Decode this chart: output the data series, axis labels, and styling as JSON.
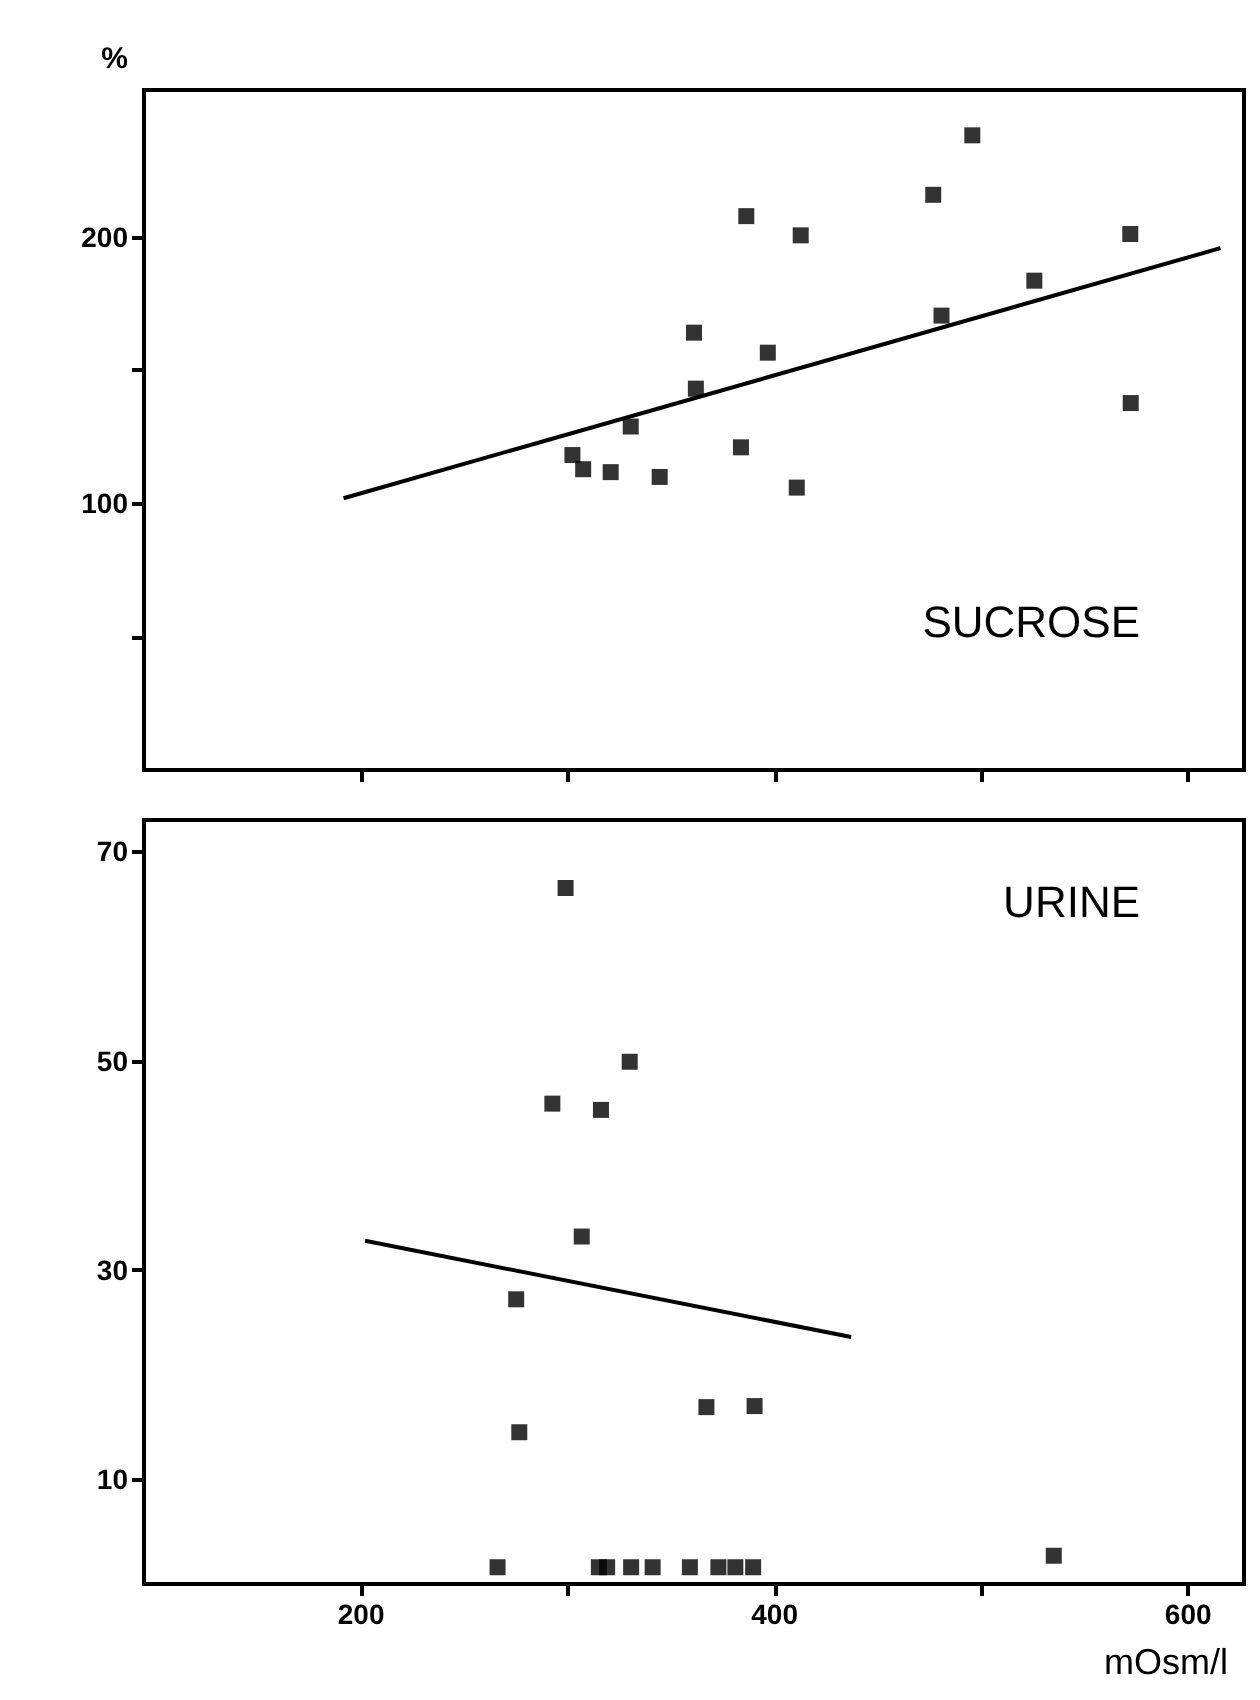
{
  "chart_data": [
    {
      "type": "scatter",
      "title": "SUCROSE",
      "ylabel": "%",
      "marker": "square",
      "tick_labels": "y",
      "grid": false,
      "xlim": [
        95,
        627
      ],
      "xticks": [
        {
          "value": 200,
          "label": null
        },
        {
          "value": 300,
          "label": null
        },
        {
          "value": 400,
          "label": null
        },
        {
          "value": 500,
          "label": null
        },
        {
          "value": 600,
          "label": null
        }
      ],
      "ylim": [
        0,
        255
      ],
      "yticks": [
        {
          "value": 50,
          "label": null
        },
        100,
        {
          "value": 150,
          "label": null
        },
        200
      ],
      "series": [
        {
          "color": "#000000",
          "x": [
            495.6,
            476.7,
            386.3,
            412.6,
            572,
            525.6,
            480.7,
            361,
            396.7,
            361.9,
            330.4,
            302.2,
            307.4,
            320.7,
            344.4,
            383.7,
            410.7,
            572.2
          ],
          "values": [
            238,
            215.7,
            207.7,
            200.5,
            201,
            183.5,
            170.4,
            164,
            156.5,
            143,
            128.8,
            118.1,
            112.8,
            111.7,
            109.9,
            121,
            105.9,
            137.6
          ]
        },
        {
          "type": "line",
          "color": "#000000",
          "marker": "none",
          "x": [
            191.5,
            615.6
          ],
          "values": [
            101.9,
            195.7
          ]
        }
      ]
    },
    {
      "type": "scatter",
      "title": "URINE",
      "xlabel": "mOsm/l",
      "marker": "square",
      "grid": false,
      "xlim": [
        95,
        627
      ],
      "xticks": [
        200,
        {
          "value": 300,
          "label": null
        },
        400,
        {
          "value": 500,
          "label": null
        },
        600
      ],
      "ylim": [
        0,
        73
      ],
      "yticks": [
        10,
        30,
        50,
        70
      ],
      "series": [
        {
          "color": "#000000",
          "x": [
            298.9,
            329.9,
            292.5,
            316,
            306.7,
            275,
            276.5,
            367,
            390.3,
            535,
            266,
            315,
            319,
            330.6,
            341,
            359,
            372.8,
            381,
            389.6
          ],
          "values": [
            66.5,
            49.9,
            45.9,
            45.3,
            33.2,
            27.2,
            14.5,
            16.9,
            17,
            2.7,
            1.6,
            1.6,
            1.6,
            1.6,
            1.6,
            1.6,
            1.6,
            1.6,
            1.6
          ]
        },
        {
          "type": "line",
          "color": "#000000",
          "marker": "none",
          "x": [
            201.9,
            437
          ],
          "values": [
            32.8,
            23.6
          ]
        }
      ]
    }
  ]
}
